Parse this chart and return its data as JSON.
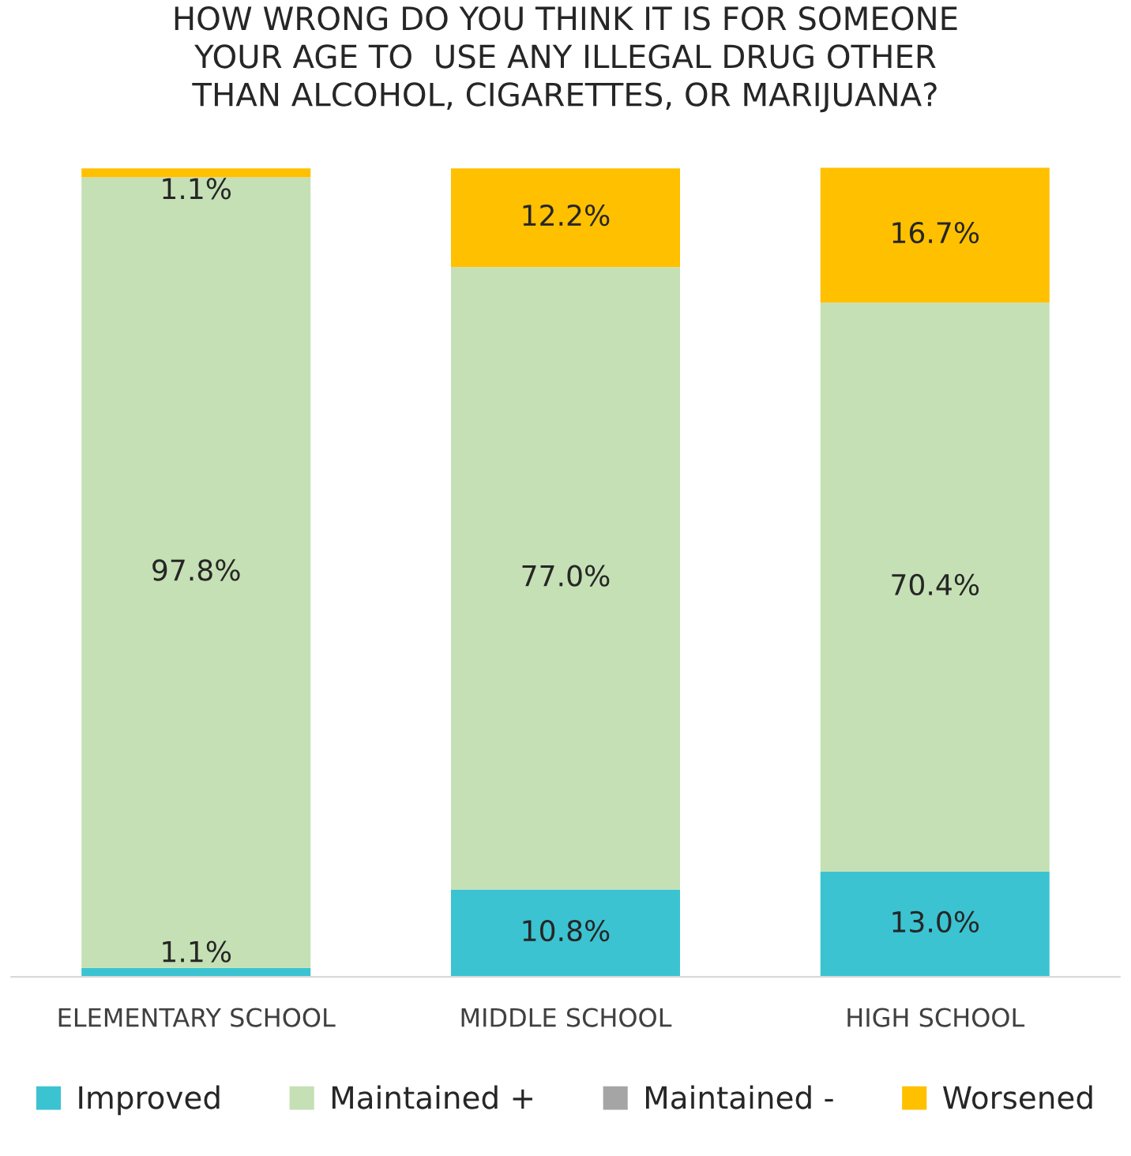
{
  "chart_data": {
    "type": "bar",
    "stacked": true,
    "title": "HOW WRONG DO YOU THINK IT IS FOR SOMEONE\nYOUR AGE TO  USE ANY ILLEGAL DRUG OTHER\nTHAN ALCOHOL, CIGARETTES, OR MARIJUANA?",
    "categories": [
      "ELEMENTARY SCHOOL",
      "MIDDLE SCHOOL",
      "HIGH SCHOOL"
    ],
    "series": [
      {
        "name": "Improved",
        "color": "#3bc3d1",
        "values": [
          1.1,
          10.8,
          13.0
        ],
        "value_labels": [
          "1.1%",
          "10.8%",
          "13.0%"
        ]
      },
      {
        "name": "Maintained +",
        "color": "#c5e0b4",
        "values": [
          97.8,
          77.0,
          70.4
        ],
        "value_labels": [
          "97.8%",
          "77.0%",
          "70.4%"
        ]
      },
      {
        "name": "Maintained -",
        "color": "#a5a5a5",
        "values": [
          0,
          0,
          0
        ],
        "value_labels": [
          null,
          null,
          null
        ]
      },
      {
        "name": "Worsened",
        "color": "#ffc000",
        "values": [
          1.1,
          12.2,
          16.7
        ],
        "value_labels": [
          "1.1%",
          "12.2%",
          "16.7%"
        ]
      }
    ],
    "legend": "bottom",
    "grid": false,
    "tick_labels": "x"
  }
}
